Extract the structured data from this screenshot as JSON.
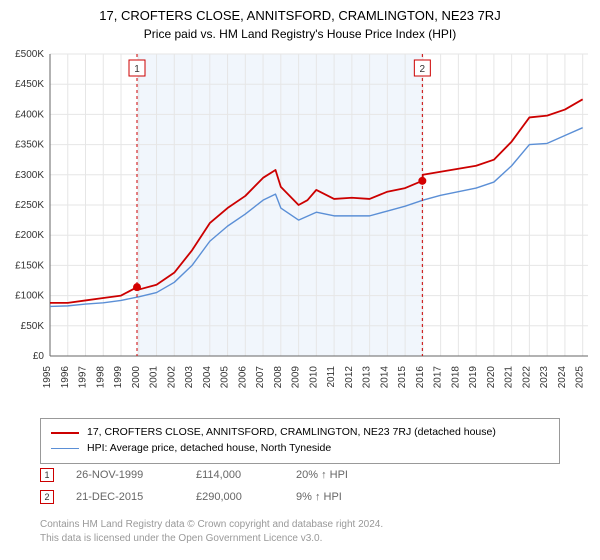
{
  "title": "17, CROFTERS CLOSE, ANNITSFORD, CRAMLINGTON, NE23 7RJ",
  "subtitle": "Price paid vs. HM Land Registry's House Price Index (HPI)",
  "chart": {
    "type": "line",
    "background_color": "#ffffff",
    "plot_background": "#ffffff",
    "highlight_band": {
      "from": 1999.9,
      "to": 2015.97,
      "color": "#f1f6fc"
    },
    "xlim": [
      1995,
      2025.3
    ],
    "ylim": [
      0,
      500000
    ],
    "ytick_step": 50000,
    "ytick_prefix": "£",
    "ytick_format": "K",
    "xtick_step": 1,
    "grid_color": "#e6e6e6",
    "axis_color": "#666666",
    "xlabel_fontsize": 10,
    "ylabel_fontsize": 10,
    "xlabel_rotation": -90,
    "series": [
      {
        "name": "17, CROFTERS CLOSE, ANNITSFORD, CRAMLINGTON, NE23 7RJ (detached house)",
        "color": "#cc0000",
        "line_width": 1.8,
        "data": [
          [
            1995,
            88000
          ],
          [
            1996,
            88000
          ],
          [
            1997,
            92000
          ],
          [
            1998,
            96000
          ],
          [
            1999,
            100000
          ],
          [
            1999.9,
            114000
          ],
          [
            2000,
            110000
          ],
          [
            2001,
            118000
          ],
          [
            2002,
            138000
          ],
          [
            2003,
            175000
          ],
          [
            2004,
            220000
          ],
          [
            2005,
            245000
          ],
          [
            2006,
            265000
          ],
          [
            2007,
            295000
          ],
          [
            2007.7,
            308000
          ],
          [
            2008,
            280000
          ],
          [
            2009,
            250000
          ],
          [
            2009.5,
            258000
          ],
          [
            2010,
            275000
          ],
          [
            2011,
            260000
          ],
          [
            2012,
            262000
          ],
          [
            2013,
            260000
          ],
          [
            2014,
            272000
          ],
          [
            2015,
            278000
          ],
          [
            2015.97,
            290000
          ],
          [
            2016,
            300000
          ],
          [
            2017,
            305000
          ],
          [
            2018,
            310000
          ],
          [
            2019,
            315000
          ],
          [
            2020,
            325000
          ],
          [
            2021,
            355000
          ],
          [
            2022,
            395000
          ],
          [
            2023,
            398000
          ],
          [
            2024,
            408000
          ],
          [
            2025,
            425000
          ]
        ]
      },
      {
        "name": "HPI: Average price, detached house, North Tyneside",
        "color": "#5b8fd6",
        "line_width": 1.4,
        "data": [
          [
            1995,
            82000
          ],
          [
            1996,
            83000
          ],
          [
            1997,
            86000
          ],
          [
            1998,
            88000
          ],
          [
            1999,
            92000
          ],
          [
            2000,
            98000
          ],
          [
            2001,
            105000
          ],
          [
            2002,
            122000
          ],
          [
            2003,
            150000
          ],
          [
            2004,
            190000
          ],
          [
            2005,
            215000
          ],
          [
            2006,
            235000
          ],
          [
            2007,
            258000
          ],
          [
            2007.7,
            268000
          ],
          [
            2008,
            245000
          ],
          [
            2009,
            225000
          ],
          [
            2010,
            238000
          ],
          [
            2011,
            232000
          ],
          [
            2012,
            232000
          ],
          [
            2013,
            232000
          ],
          [
            2014,
            240000
          ],
          [
            2015,
            248000
          ],
          [
            2016,
            258000
          ],
          [
            2017,
            266000
          ],
          [
            2018,
            272000
          ],
          [
            2019,
            278000
          ],
          [
            2020,
            288000
          ],
          [
            2021,
            315000
          ],
          [
            2022,
            350000
          ],
          [
            2023,
            352000
          ],
          [
            2024,
            365000
          ],
          [
            2025,
            378000
          ]
        ]
      }
    ],
    "event_markers": [
      {
        "n": 1,
        "x": 1999.9,
        "y": 114000,
        "color": "#cc0000",
        "dot_radius": 4
      },
      {
        "n": 2,
        "x": 2015.97,
        "y": 290000,
        "color": "#cc0000",
        "dot_radius": 4
      }
    ],
    "flag_border": "#cc0000",
    "flag_fill": "#ffffff",
    "flag_text_color": "#333333",
    "marker_dot_color": "#d40000"
  },
  "legend": {
    "border_color": "#999999",
    "items": [
      {
        "color": "#cc0000",
        "width": 2,
        "label": "17, CROFTERS CLOSE, ANNITSFORD, CRAMLINGTON, NE23 7RJ (detached house)"
      },
      {
        "color": "#5b8fd6",
        "width": 1.5,
        "label": "HPI: Average price, detached house, North Tyneside"
      }
    ]
  },
  "events": [
    {
      "n": "1",
      "date": "26-NOV-1999",
      "price": "£114,000",
      "delta": "20% ↑ HPI",
      "color": "#cc0000"
    },
    {
      "n": "2",
      "date": "21-DEC-2015",
      "price": "£290,000",
      "delta": "9% ↑ HPI",
      "color": "#cc0000"
    }
  ],
  "credits": {
    "line1": "Contains HM Land Registry data © Crown copyright and database right 2024.",
    "line2": "This data is licensed under the Open Government Licence v3.0."
  }
}
